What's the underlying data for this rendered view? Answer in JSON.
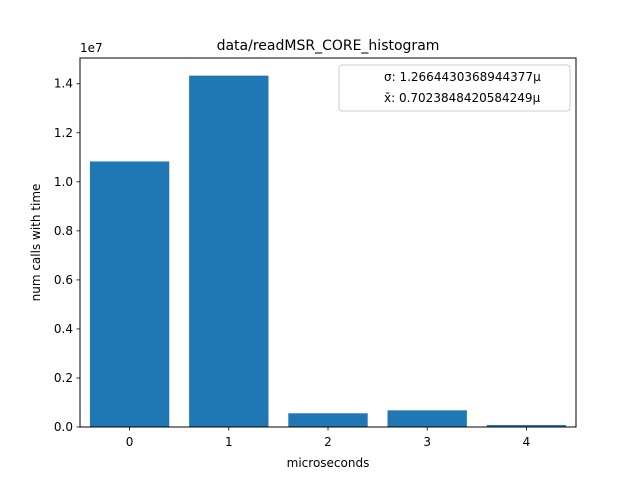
{
  "chart_data": {
    "type": "bar",
    "title": "data/readMSR_CORE_histogram",
    "xlabel": "microseconds",
    "ylabel": "num calls with time",
    "y_offset_label": "1e7",
    "categories": [
      "0",
      "1",
      "2",
      "3",
      "4"
    ],
    "values": [
      10830000,
      14330000,
      560000,
      680000,
      80000
    ],
    "ylim": [
      0,
      15050000
    ],
    "xlim": [
      -0.5,
      4.5
    ],
    "yticks": [
      0,
      2000000,
      4000000,
      6000000,
      8000000,
      10000000,
      12000000,
      14000000
    ],
    "ytick_labels": [
      "0.0",
      "0.2",
      "0.4",
      "0.6",
      "0.8",
      "1.0",
      "1.2",
      "1.4"
    ],
    "xticks": [
      0,
      1,
      2,
      3,
      4
    ],
    "xtick_labels": [
      "0",
      "1",
      "2",
      "3",
      "4"
    ],
    "grid": false,
    "legend": {
      "placement": "top-right",
      "entries": [
        "σ: 1.2664430368944377µ",
        "x̄: 0.7023848420584249µ"
      ]
    },
    "bar_color": "#1f77b4"
  }
}
